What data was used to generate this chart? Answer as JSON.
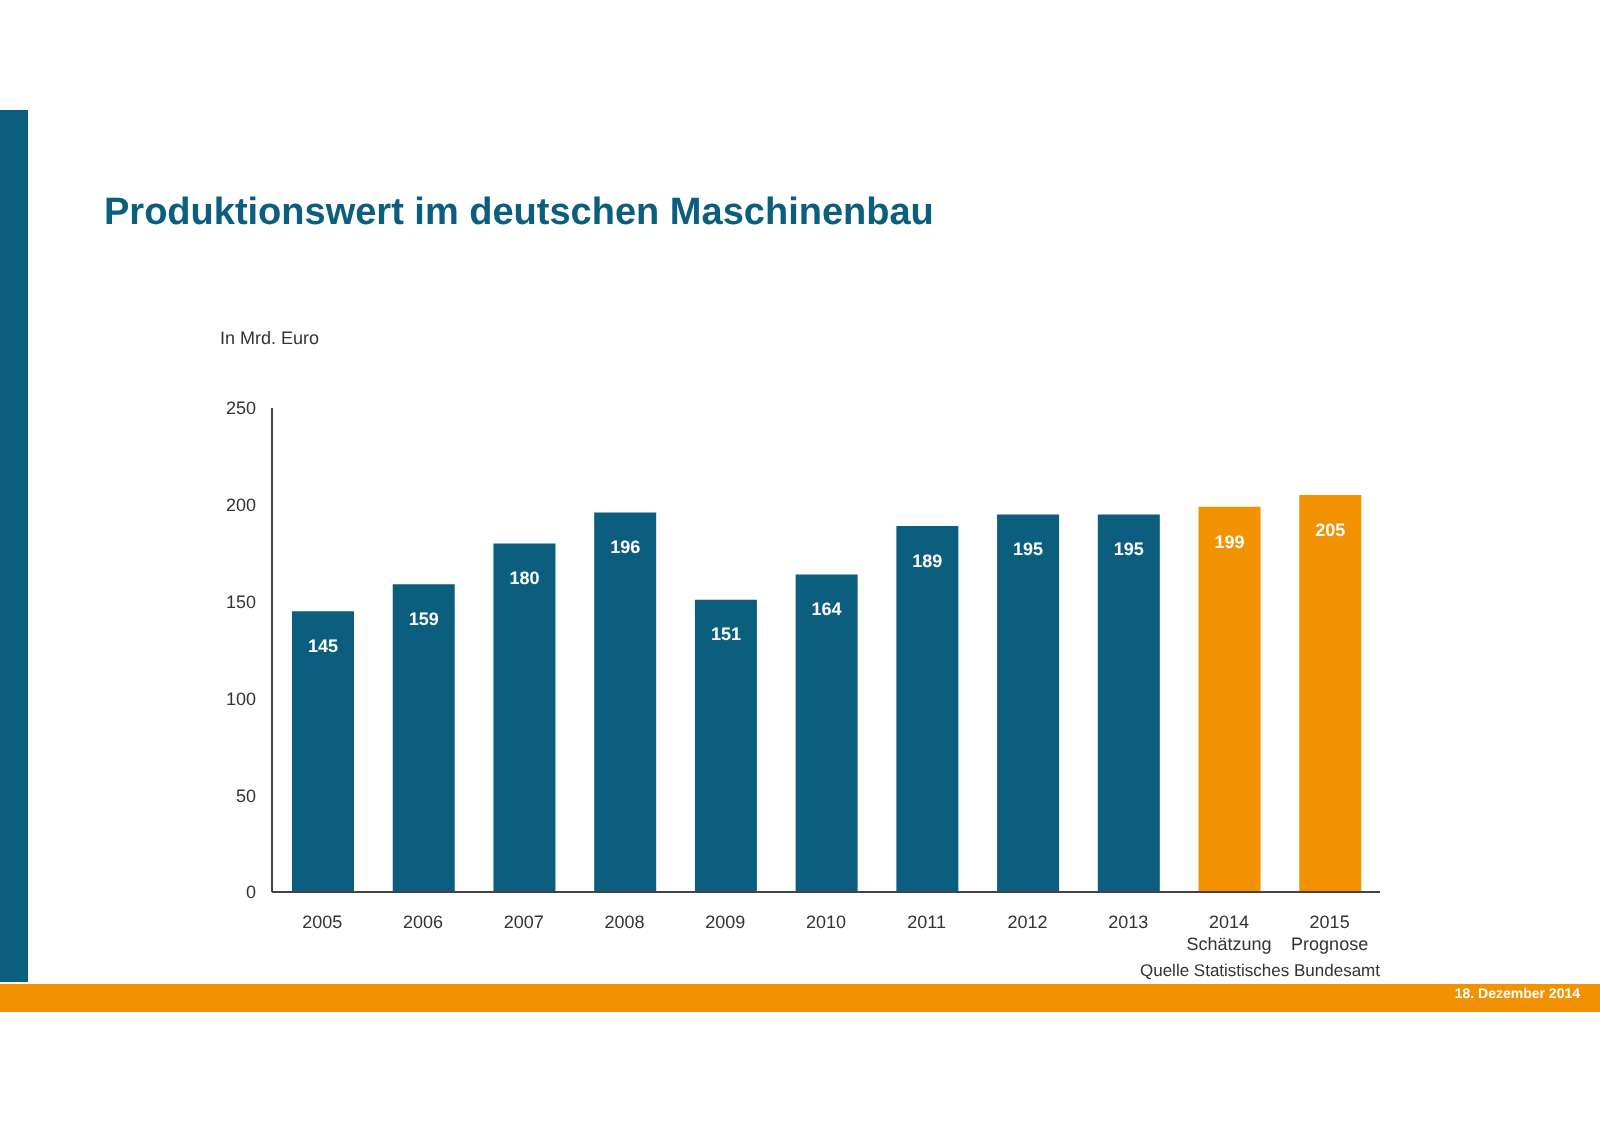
{
  "chart_data": {
    "type": "bar",
    "title": "Produktionswert im deutschen Maschinenbau",
    "ylabel": "In Mrd. Euro",
    "categories": [
      "2005",
      "2006",
      "2007",
      "2008",
      "2009",
      "2010",
      "2011",
      "2012",
      "2013",
      "2014\nSchätzung",
      "2015\nPrognose"
    ],
    "values": [
      145,
      159,
      180,
      196,
      151,
      164,
      189,
      195,
      195,
      199,
      205
    ],
    "colors": [
      "#0b5e7e",
      "#0b5e7e",
      "#0b5e7e",
      "#0b5e7e",
      "#0b5e7e",
      "#0b5e7e",
      "#0b5e7e",
      "#0b5e7e",
      "#0b5e7e",
      "#f39200",
      "#f39200"
    ],
    "ylim": [
      0,
      250
    ],
    "yticks": [
      0,
      50,
      100,
      150,
      200,
      250
    ],
    "grid": false,
    "legend": false,
    "data_labels": true,
    "annotations": [
      "Quelle Statistisches Bundesamt",
      "18. Dezember 2014"
    ]
  }
}
